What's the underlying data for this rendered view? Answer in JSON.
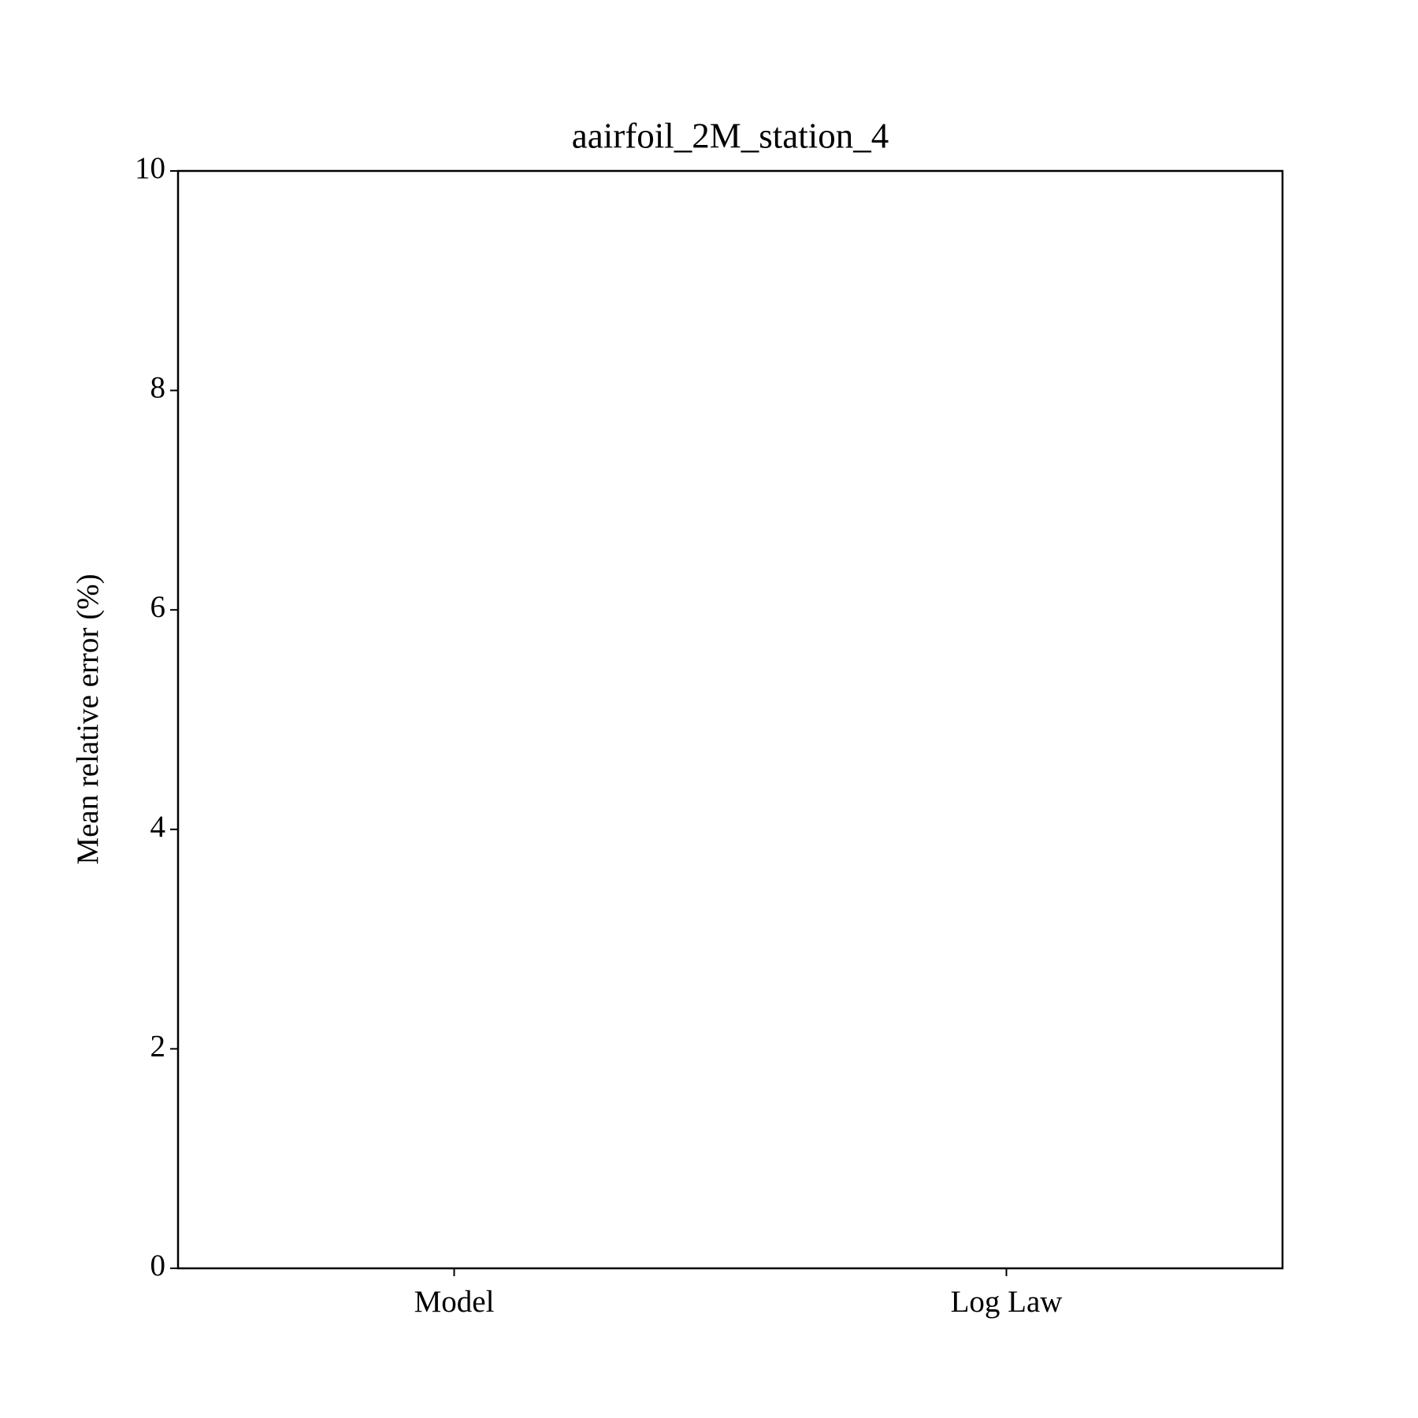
{
  "chart_data": {
    "type": "bar",
    "title": "aairfoil_2M_station_4",
    "ylabel": "Mean relative error (%)",
    "categories": [
      "Model",
      "Log Law"
    ],
    "ylim": [
      0,
      10
    ],
    "yticks": [
      0,
      2,
      4,
      6,
      8,
      10
    ],
    "grid": false
  }
}
